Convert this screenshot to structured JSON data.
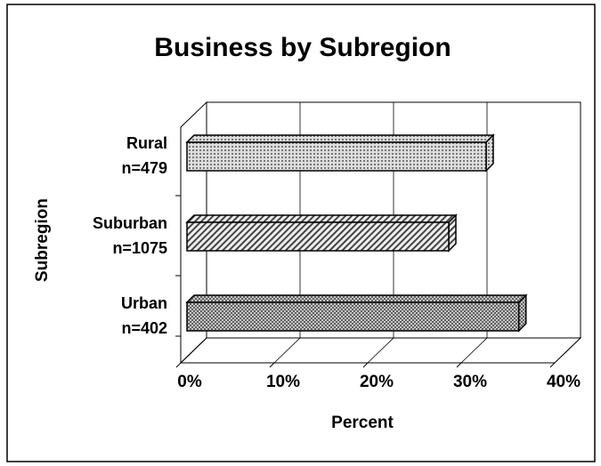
{
  "chart_data": {
    "type": "bar3d_horizontal",
    "title": "Business by Subregion",
    "x_label": "Percent",
    "y_label": "Subregion",
    "categories": [
      "Rural",
      "Suburban",
      "Urban"
    ],
    "category_notes": [
      "n=479",
      "n=1075",
      "n=402"
    ],
    "values": [
      32,
      28,
      35.5
    ],
    "xlim": [
      0,
      40
    ],
    "xticks": [
      {
        "value": 0,
        "label": "0%"
      },
      {
        "value": 10,
        "label": "10%"
      },
      {
        "value": 20,
        "label": "20%"
      },
      {
        "value": 30,
        "label": "30%"
      },
      {
        "value": 40,
        "label": "40%"
      }
    ],
    "grid": true
  }
}
